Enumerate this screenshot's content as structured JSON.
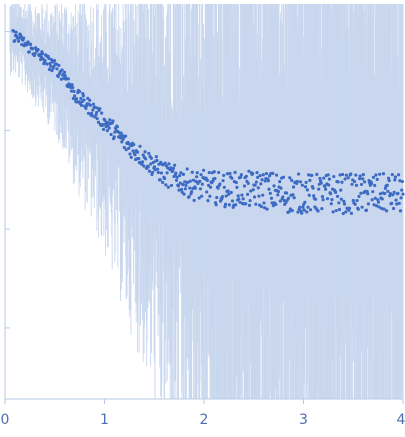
{
  "chart_data": {
    "type": "scatter",
    "title": "",
    "xlabel": "",
    "ylabel": "",
    "xlim": [
      0,
      4.0
    ],
    "ylim": [
      0,
      1.0
    ],
    "x_ticks": [
      {
        "value": 0,
        "label": "0"
      },
      {
        "value": 1,
        "label": "1"
      },
      {
        "value": 2,
        "label": "2"
      },
      {
        "value": 3,
        "label": "3"
      },
      {
        "value": 4,
        "label": "4"
      }
    ],
    "y_ticks": [
      {
        "value": 0.18
      },
      {
        "value": 0.43
      },
      {
        "value": 0.68
      },
      {
        "value": 0.93
      }
    ],
    "grid": false,
    "legend": "none",
    "colors": {
      "points": "#3d6bc4",
      "error_band": "#c9d7ee",
      "axis": "#b8c8e6",
      "tick_labels": "#4f6fae"
    },
    "series": [
      {
        "x": [
          0.1,
          0.2,
          0.3,
          0.4,
          0.5,
          0.6,
          0.7,
          0.8,
          0.9,
          1.0,
          1.1,
          1.2,
          1.3,
          1.4,
          1.5,
          1.6,
          1.7,
          1.8,
          1.9,
          2.0,
          2.2,
          2.4,
          2.6,
          2.8,
          3.0,
          3.2,
          3.4,
          3.6,
          3.8,
          4.0
        ],
        "y": [
          0.92,
          0.9,
          0.88,
          0.86,
          0.84,
          0.82,
          0.77,
          0.75,
          0.73,
          0.7,
          0.68,
          0.65,
          0.63,
          0.61,
          0.59,
          0.57,
          0.56,
          0.55,
          0.54,
          0.54,
          0.53,
          0.53,
          0.53,
          0.52,
          0.52,
          0.52,
          0.52,
          0.52,
          0.52,
          0.52
        ],
        "error": [
          0.06,
          0.07,
          0.08,
          0.09,
          0.1,
          0.12,
          0.14,
          0.16,
          0.18,
          0.2,
          0.23,
          0.26,
          0.29,
          0.32,
          0.36,
          0.4,
          0.45,
          0.5,
          0.55,
          0.6,
          0.7,
          0.75,
          0.8,
          0.85,
          0.85,
          0.85,
          0.85,
          0.85,
          0.85,
          0.85
        ]
      }
    ]
  }
}
